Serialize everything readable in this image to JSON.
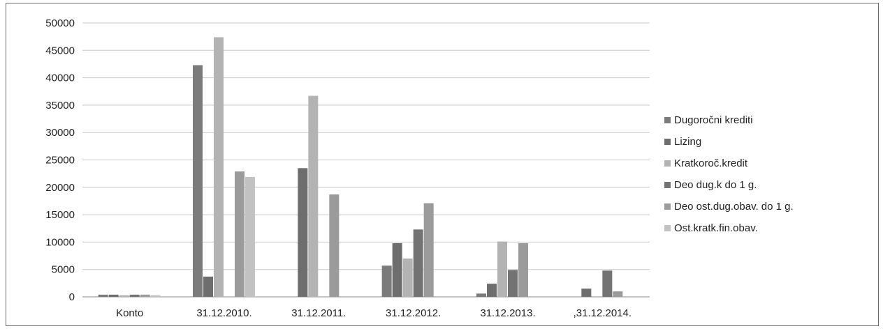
{
  "chart_data": {
    "type": "bar",
    "title": "",
    "xlabel": "",
    "ylabel": "",
    "ylim": [
      0,
      50000
    ],
    "yticks": [
      0,
      5000,
      10000,
      15000,
      20000,
      25000,
      30000,
      35000,
      40000,
      45000,
      50000
    ],
    "grid": true,
    "legend_position": "right",
    "categories": [
      "Konto",
      "31.12.2010.",
      "31.12.2011.",
      "31.12.2012.",
      "31.12.2013.",
      ",31.12.2014."
    ],
    "series": [
      {
        "name": "Dugoročni krediti",
        "color": "#7b7b7b",
        "values": [
          400,
          42300,
          0,
          5700,
          600,
          0
        ]
      },
      {
        "name": "Lizing",
        "color": "#6e6e6e",
        "values": [
          400,
          3700,
          23500,
          9800,
          2400,
          1500
        ]
      },
      {
        "name": "Kratkoroč.kredit",
        "color": "#b3b3b3",
        "values": [
          300,
          47400,
          36700,
          7000,
          10100,
          0
        ]
      },
      {
        "name": "Deo dug.k do 1 g.",
        "color": "#737373",
        "values": [
          400,
          0,
          0,
          12300,
          4900,
          4800
        ]
      },
      {
        "name": "Deo ost.dug.obav. do 1 g.",
        "color": "#9b9b9b",
        "values": [
          400,
          22900,
          18700,
          17100,
          9800,
          1000
        ]
      },
      {
        "name": "Ost.kratk.fin.obav.",
        "color": "#c2c2c2",
        "values": [
          300,
          21900,
          0,
          0,
          0,
          0
        ]
      }
    ]
  }
}
